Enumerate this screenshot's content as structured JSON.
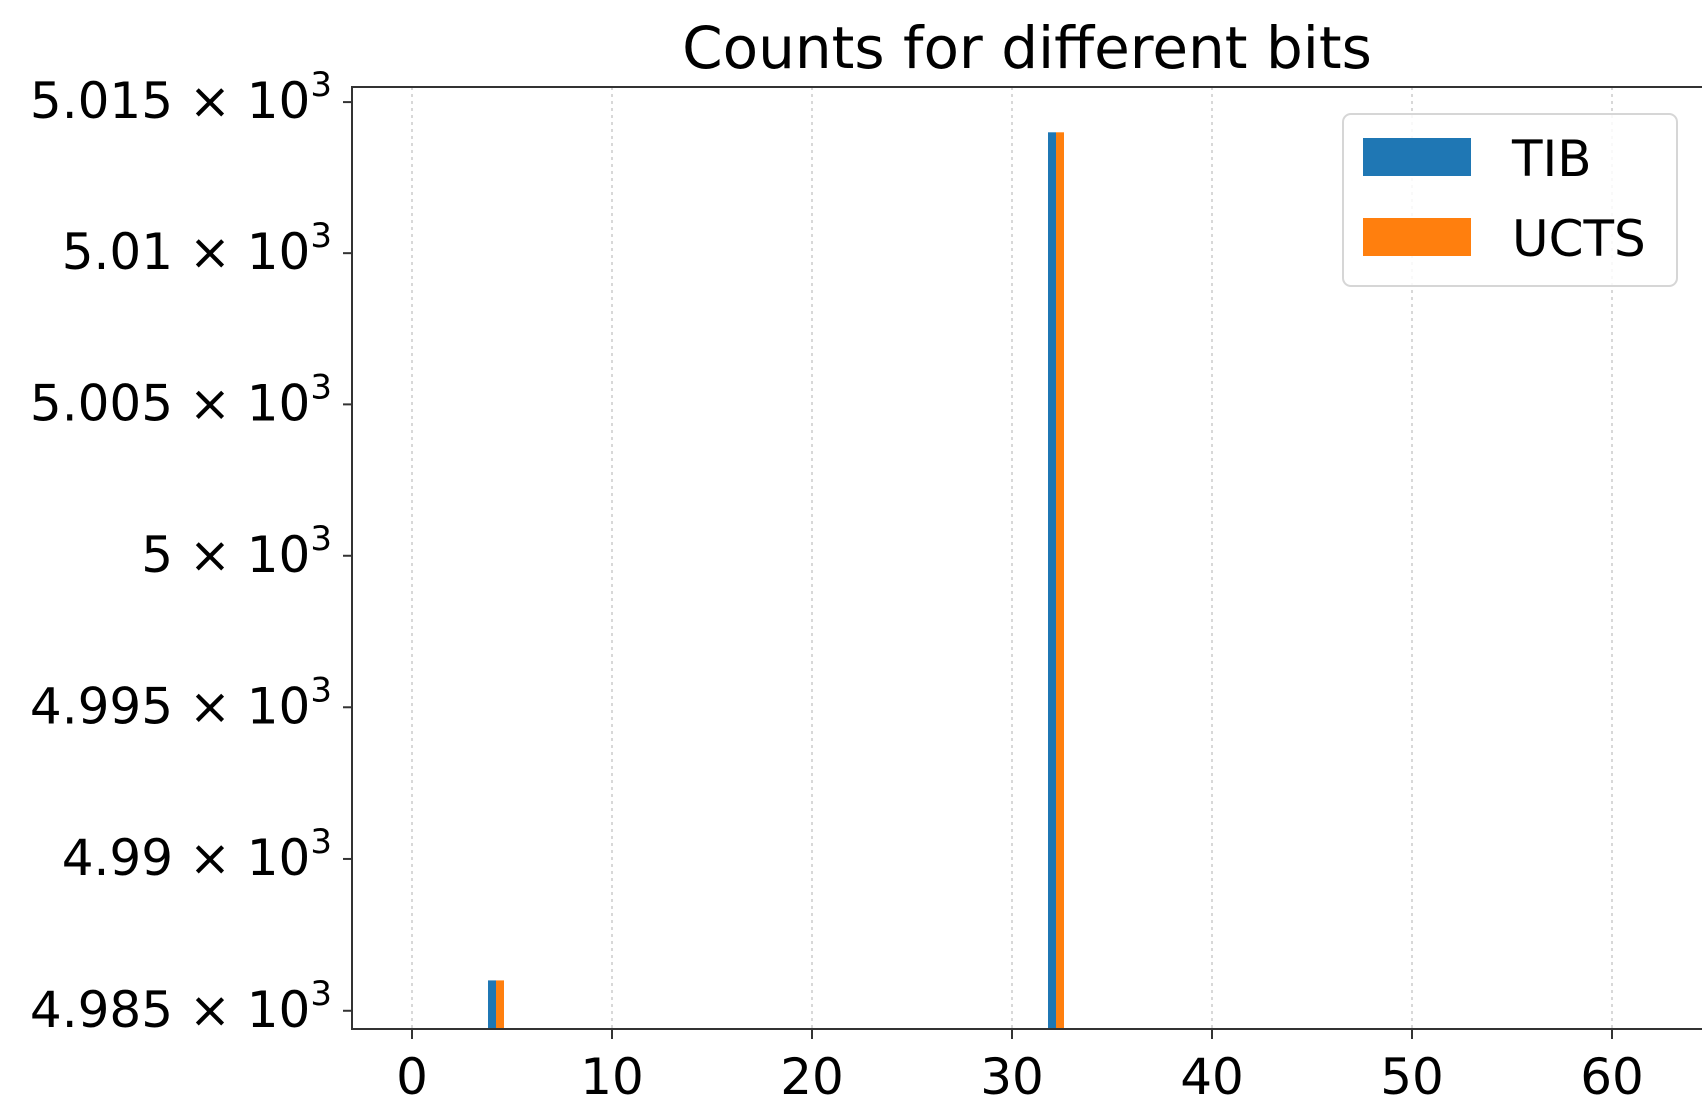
{
  "chart_data": {
    "type": "bar",
    "title": "Counts for different bits",
    "xlabel": "",
    "ylabel": "",
    "y_scale": "log",
    "xlim": [
      -3,
      65
    ],
    "ylim": [
      4984.4,
      5015.5
    ],
    "x_ticks": [
      0,
      10,
      20,
      30,
      40,
      50,
      60
    ],
    "y_ticks": [
      {
        "value": 4985,
        "mantissa": "4.985",
        "base": "10",
        "exp": "3"
      },
      {
        "value": 4990,
        "mantissa": "4.99",
        "base": "10",
        "exp": "3"
      },
      {
        "value": 4995,
        "mantissa": "4.995",
        "base": "10",
        "exp": "3"
      },
      {
        "value": 5000,
        "mantissa": "5",
        "base": "10",
        "exp": "3"
      },
      {
        "value": 5005,
        "mantissa": "5.005",
        "base": "10",
        "exp": "3"
      },
      {
        "value": 5010,
        "mantissa": "5.01",
        "base": "10",
        "exp": "3"
      },
      {
        "value": 5015,
        "mantissa": "5.015",
        "base": "10",
        "exp": "3"
      }
    ],
    "grid": {
      "x": true,
      "y": false
    },
    "legend_position": "top-right",
    "bar_width": 0.4,
    "series": [
      {
        "name": "TIB",
        "color": "#1f77b4",
        "x": [
          4,
          32
        ],
        "values": [
          4986,
          5014
        ]
      },
      {
        "name": "UCTS",
        "color": "#ff7f0e",
        "x": [
          4.4,
          32.4
        ],
        "values": [
          4986,
          5014
        ]
      }
    ]
  }
}
